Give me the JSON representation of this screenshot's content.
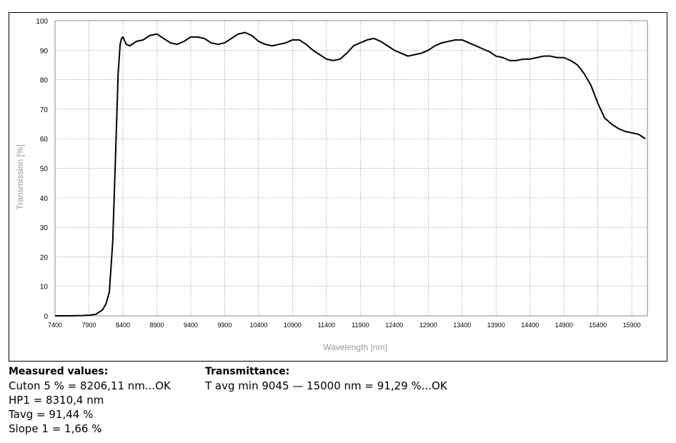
{
  "chart_data": {
    "type": "line",
    "x_label": "Wavelength [nm]",
    "y_label": "Transmission [%]",
    "x": [
      7400,
      7600,
      7800,
      7900,
      8000,
      8100,
      8150,
      8200,
      8250,
      8300,
      8330,
      8360,
      8380,
      8400,
      8450,
      8500,
      8600,
      8700,
      8800,
      8900,
      9000,
      9100,
      9200,
      9300,
      9400,
      9500,
      9600,
      9700,
      9800,
      9900,
      10000,
      10100,
      10200,
      10300,
      10400,
      10500,
      10600,
      10700,
      10800,
      10900,
      11000,
      11100,
      11200,
      11300,
      11400,
      11500,
      11600,
      11700,
      11800,
      11900,
      12000,
      12100,
      12200,
      12300,
      12400,
      12500,
      12600,
      12700,
      12800,
      12900,
      13000,
      13100,
      13200,
      13300,
      13400,
      13500,
      13600,
      13700,
      13800,
      13900,
      14000,
      14100,
      14200,
      14300,
      14400,
      14500,
      14600,
      14700,
      14800,
      14900,
      15000,
      15100,
      15200,
      15300,
      15400,
      15500,
      15600,
      15700,
      15800,
      15900,
      16000,
      16100
    ],
    "values": [
      0,
      0,
      0.1,
      0.2,
      0.5,
      2,
      4,
      8,
      25,
      60,
      82,
      92,
      94,
      94.5,
      92,
      91.5,
      93,
      93.5,
      95,
      95.5,
      94,
      92.5,
      92,
      93,
      94.5,
      94.5,
      94,
      92.5,
      92,
      92.5,
      94,
      95.5,
      96,
      95,
      93,
      92,
      91.5,
      92,
      92.5,
      93.5,
      93.5,
      92,
      90,
      88.5,
      87,
      86.5,
      87,
      89,
      91.5,
      92.5,
      93.5,
      94,
      93,
      91.5,
      90,
      89,
      88,
      88.5,
      89,
      90,
      91.5,
      92.5,
      93,
      93.5,
      93.5,
      92.5,
      91.5,
      90.5,
      89.5,
      88,
      87.5,
      86.5,
      86.5,
      87,
      87,
      87.5,
      88,
      88,
      87.5,
      87.5,
      86.5,
      85,
      82,
      78,
      72,
      67,
      65,
      63.5,
      62.5,
      62,
      61.5,
      60
    ],
    "color": "#000000",
    "xlim": [
      7400,
      16130
    ],
    "xticks": [
      7400,
      7900,
      8400,
      8900,
      9400,
      9900,
      10400,
      10900,
      11400,
      11900,
      12400,
      12900,
      13400,
      13900,
      14400,
      14900,
      15400,
      15900
    ],
    "ylim": [
      0,
      100
    ],
    "yticks": [
      0,
      10,
      20,
      30,
      40,
      50,
      60,
      70,
      80,
      90,
      100
    ],
    "grid": true
  },
  "measured": {
    "title": "Measured values:",
    "lines": [
      "Cuton 5 % = 8206,11 nm...OK",
      "HP1 = 8310,4 nm",
      "Tavg = 91,44 %",
      "Slope 1 = 1,66 %"
    ]
  },
  "transmittance": {
    "title": "Transmittance:",
    "lines": [
      "T avg min 9045 — 15000 nm = 91,29 %...OK"
    ]
  }
}
